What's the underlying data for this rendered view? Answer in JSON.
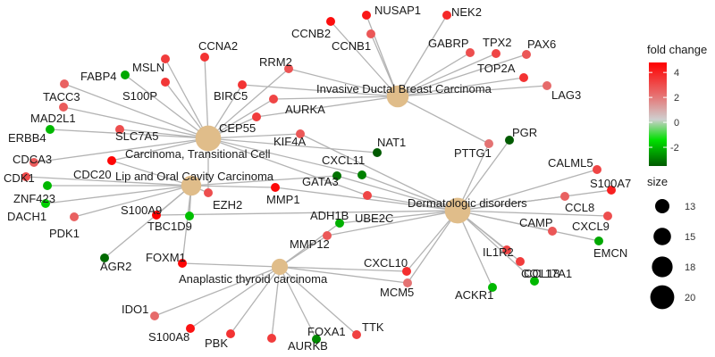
{
  "network": {
    "diseases": [
      {
        "id": "IDBC",
        "label": "Invasive Ductal Breast Carcinoma",
        "size": 18
      },
      {
        "id": "CTC",
        "label": "Carcinoma, Transitional Cell",
        "size": 20
      },
      {
        "id": "LOC",
        "label": "Lip and Oral Cavity Carcinoma",
        "size": 17
      },
      {
        "id": "DD",
        "label": "Dermatologic disorders",
        "size": 20
      },
      {
        "id": "ATC",
        "label": "Anaplastic thyroid carcinoma",
        "size": 15
      }
    ],
    "genes": [
      {
        "label": "NUSAP1",
        "fc": 4.0,
        "links": [
          "IDBC"
        ]
      },
      {
        "label": "NEK2",
        "fc": 3.6,
        "links": [
          "IDBC"
        ]
      },
      {
        "label": "CCNB2",
        "fc": 4.2,
        "links": [
          "IDBC"
        ]
      },
      {
        "label": "CCNB1",
        "fc": 2.6,
        "links": [
          "IDBC"
        ]
      },
      {
        "label": "GABRP",
        "fc": 2.8,
        "links": [
          "IDBC"
        ]
      },
      {
        "label": "TPX2",
        "fc": 3.0,
        "links": [
          "IDBC"
        ]
      },
      {
        "label": "PAX6",
        "fc": 2.6,
        "links": [
          "IDBC"
        ]
      },
      {
        "label": "TOP2A",
        "fc": 3.4,
        "links": [
          "IDBC"
        ]
      },
      {
        "label": "LAG3",
        "fc": 2.2,
        "links": [
          "IDBC"
        ]
      },
      {
        "label": "RRM2",
        "fc": 2.7,
        "links": [
          "IDBC",
          "CTC"
        ]
      },
      {
        "label": "AURKA",
        "fc": 3.0,
        "links": [
          "IDBC",
          "CTC"
        ]
      },
      {
        "label": "CCNA2",
        "fc": 3.4,
        "links": [
          "CTC"
        ]
      },
      {
        "label": "MSLN",
        "fc": 3.2,
        "links": [
          "CTC"
        ]
      },
      {
        "label": "FABP4",
        "fc": -2.8,
        "links": [
          "CTC"
        ]
      },
      {
        "label": "S100P",
        "fc": 3.3,
        "links": [
          "CTC"
        ]
      },
      {
        "label": "TACC3",
        "fc": 2.4,
        "links": [
          "CTC"
        ]
      },
      {
        "label": "BIRC5",
        "fc": 3.4,
        "links": [
          "IDBC",
          "CTC"
        ]
      },
      {
        "label": "CEP55",
        "fc": 3.2,
        "links": [
          "CTC",
          "IDBC"
        ]
      },
      {
        "label": "MAD2L1",
        "fc": 2.5,
        "links": [
          "CTC"
        ]
      },
      {
        "label": "ERBB4",
        "fc": -2.6,
        "links": [
          "CTC"
        ]
      },
      {
        "label": "SLC7A5",
        "fc": 2.8,
        "links": [
          "CTC"
        ]
      },
      {
        "label": "KIF4A",
        "fc": 2.6,
        "links": [
          "CTC",
          "DD"
        ]
      },
      {
        "label": "NAT1",
        "fc": -3.8,
        "links": [
          "CTC"
        ]
      },
      {
        "label": "CXCL11",
        "fc": -3.3,
        "links": [
          "CTC",
          "DD"
        ]
      },
      {
        "label": "CDCA3",
        "fc": 2.5,
        "links": [
          "CTC"
        ]
      },
      {
        "label": "CDC20",
        "fc": 4.4,
        "links": [
          "CTC",
          "LOC"
        ]
      },
      {
        "label": "CDK1",
        "fc": 2.9,
        "links": [
          "LOC"
        ]
      },
      {
        "label": "ZNF423",
        "fc": -2.6,
        "links": [
          "LOC"
        ]
      },
      {
        "label": "DACH1",
        "fc": -2.3,
        "links": [
          "LOC"
        ]
      },
      {
        "label": "PDK1",
        "fc": 2.4,
        "links": [
          "LOC"
        ]
      },
      {
        "label": "S100A9",
        "fc": 4.5,
        "links": [
          "LOC",
          "DD"
        ]
      },
      {
        "label": "TBC1D9",
        "fc": -2.5,
        "links": [
          "LOC"
        ]
      },
      {
        "label": "EZH2",
        "fc": 2.8,
        "links": [
          "LOC",
          "CTC"
        ]
      },
      {
        "label": "AGR2",
        "fc": -3.6,
        "links": [
          "LOC"
        ]
      },
      {
        "label": "MMP1",
        "fc": 4.3,
        "links": [
          "LOC",
          "DD"
        ]
      },
      {
        "label": "GATA3",
        "fc": -3.5,
        "links": [
          "LOC",
          "DD"
        ]
      },
      {
        "label": "UBE2C",
        "fc": 3.0,
        "links": [
          "CTC",
          "DD"
        ]
      },
      {
        "label": "PTTG1",
        "fc": 2.0,
        "links": [
          "IDBC",
          "DD"
        ]
      },
      {
        "label": "PGR",
        "fc": -3.9,
        "links": [
          "DD"
        ]
      },
      {
        "label": "ADH1B",
        "fc": -2.7,
        "links": [
          "DD",
          "ATC"
        ]
      },
      {
        "label": "MMP12",
        "fc": 2.6,
        "links": [
          "DD",
          "ATC"
        ]
      },
      {
        "label": "FOXM1",
        "fc": 4.4,
        "links": [
          "ATC",
          "LOC"
        ]
      },
      {
        "label": "CXCL10",
        "fc": 3.5,
        "links": [
          "ATC",
          "DD"
        ]
      },
      {
        "label": "MCM5",
        "fc": 2.0,
        "links": [
          "ATC",
          "DD"
        ]
      },
      {
        "label": "CALML5",
        "fc": 3.0,
        "links": [
          "DD"
        ]
      },
      {
        "label": "S100A7",
        "fc": 3.8,
        "links": [
          "DD"
        ]
      },
      {
        "label": "CCL8",
        "fc": 2.4,
        "links": [
          "DD"
        ]
      },
      {
        "label": "CAMP",
        "fc": 2.6,
        "links": [
          "DD"
        ]
      },
      {
        "label": "CXCL9",
        "fc": 2.8,
        "links": [
          "DD"
        ]
      },
      {
        "label": "EMCN",
        "fc": -2.8,
        "links": [
          "DD"
        ]
      },
      {
        "label": "IL1R2",
        "fc": 3.0,
        "links": [
          "DD"
        ]
      },
      {
        "label": "CCL18",
        "fc": 3.2,
        "links": [
          "DD"
        ]
      },
      {
        "label": "COL17A1",
        "fc": -2.6,
        "links": [
          "DD"
        ]
      },
      {
        "label": "ACKR1",
        "fc": -2.6,
        "links": [
          "DD"
        ]
      },
      {
        "label": "IDO1",
        "fc": 2.2,
        "links": [
          "ATC"
        ]
      },
      {
        "label": "S100A8",
        "fc": 4.1,
        "links": [
          "ATC"
        ]
      },
      {
        "label": "PBK",
        "fc": 3.4,
        "links": [
          "ATC"
        ]
      },
      {
        "label": "AURKB",
        "fc": 3.2,
        "links": [
          "ATC"
        ]
      },
      {
        "label": "FOXA1",
        "fc": -3.2,
        "links": [
          "ATC"
        ]
      },
      {
        "label": "TTK",
        "fc": 3.1,
        "links": [
          "ATC"
        ]
      }
    ]
  },
  "legend": {
    "color_title": "fold change",
    "color_ticks": [
      4,
      2,
      0,
      -2
    ],
    "color_range": [
      -3.5,
      4.8
    ],
    "colors": {
      "high": "#ff0000",
      "mid": "#cfcfcf",
      "low_mid": "#00e000",
      "low": "#005a00"
    },
    "size_title": "size",
    "size_values": [
      13,
      15,
      18,
      20
    ]
  }
}
